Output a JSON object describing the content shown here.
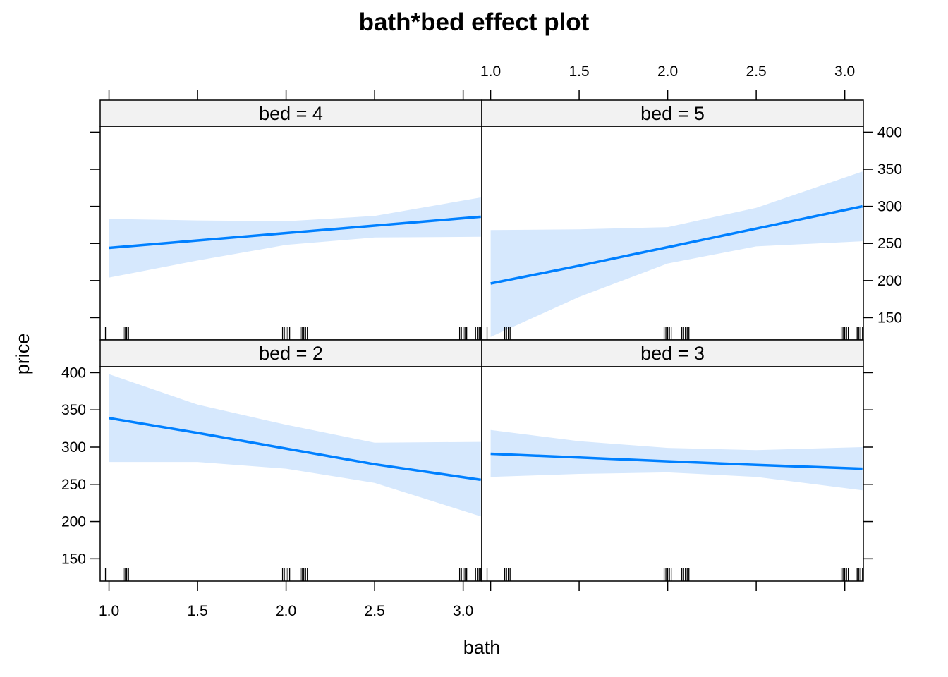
{
  "chart_data": {
    "type": "line",
    "title": "bath*bed effect plot",
    "xlabel": "bath",
    "ylabel": "price",
    "xlim": [
      0.95,
      3.105
    ],
    "ylim": [
      120,
      408
    ],
    "x_ticks": [
      1.0,
      1.5,
      2.0,
      2.5,
      3.0
    ],
    "x_tick_labels": [
      "1.0",
      "1.5",
      "2.0",
      "2.5",
      "3.0"
    ],
    "y_ticks": [
      150,
      200,
      250,
      300,
      350,
      400
    ],
    "y_tick_labels": [
      "150",
      "200",
      "250",
      "300",
      "350",
      "400"
    ],
    "colors": {
      "line": "#0080ff",
      "band": "#d6e8fd",
      "strip": "#f2f2f2"
    },
    "panels": [
      {
        "label": "bed = 4",
        "x": [
          1.0,
          1.5,
          2.0,
          2.5,
          3.1
        ],
        "fit": [
          244,
          254,
          264,
          274,
          286
        ],
        "lower": [
          204,
          227,
          248,
          258,
          259
        ],
        "upper": [
          283,
          281,
          280,
          287,
          312
        ]
      },
      {
        "label": "bed = 5",
        "x": [
          1.0,
          1.5,
          2.0,
          2.5,
          3.1
        ],
        "fit": [
          196,
          220,
          245,
          270,
          300
        ],
        "lower": [
          124,
          178,
          223,
          246,
          253
        ],
        "upper": [
          268,
          269,
          272,
          298,
          347
        ]
      },
      {
        "label": "bed = 2",
        "x": [
          1.0,
          1.5,
          2.0,
          2.5,
          3.1
        ],
        "fit": [
          339,
          319,
          298,
          277,
          256
        ],
        "lower": [
          280,
          280,
          271,
          252,
          207
        ],
        "upper": [
          398,
          357,
          330,
          306,
          307
        ]
      },
      {
        "label": "bed = 3",
        "x": [
          1.0,
          1.5,
          2.0,
          2.5,
          3.1
        ],
        "fit": [
          291,
          286,
          281,
          276,
          271
        ],
        "lower": [
          260,
          264,
          266,
          260,
          242
        ],
        "upper": [
          323,
          308,
          299,
          296,
          300
        ]
      }
    ],
    "rug_x": [
      0.98,
      1.08,
      1.09,
      1.1,
      1.11,
      1.98,
      1.99,
      2.0,
      2.01,
      2.02,
      2.08,
      2.09,
      2.1,
      2.11,
      2.12,
      2.98,
      2.99,
      3.0,
      3.01,
      3.02,
      3.07,
      3.08,
      3.09,
      3.1
    ],
    "grid": false,
    "legend": "none"
  }
}
